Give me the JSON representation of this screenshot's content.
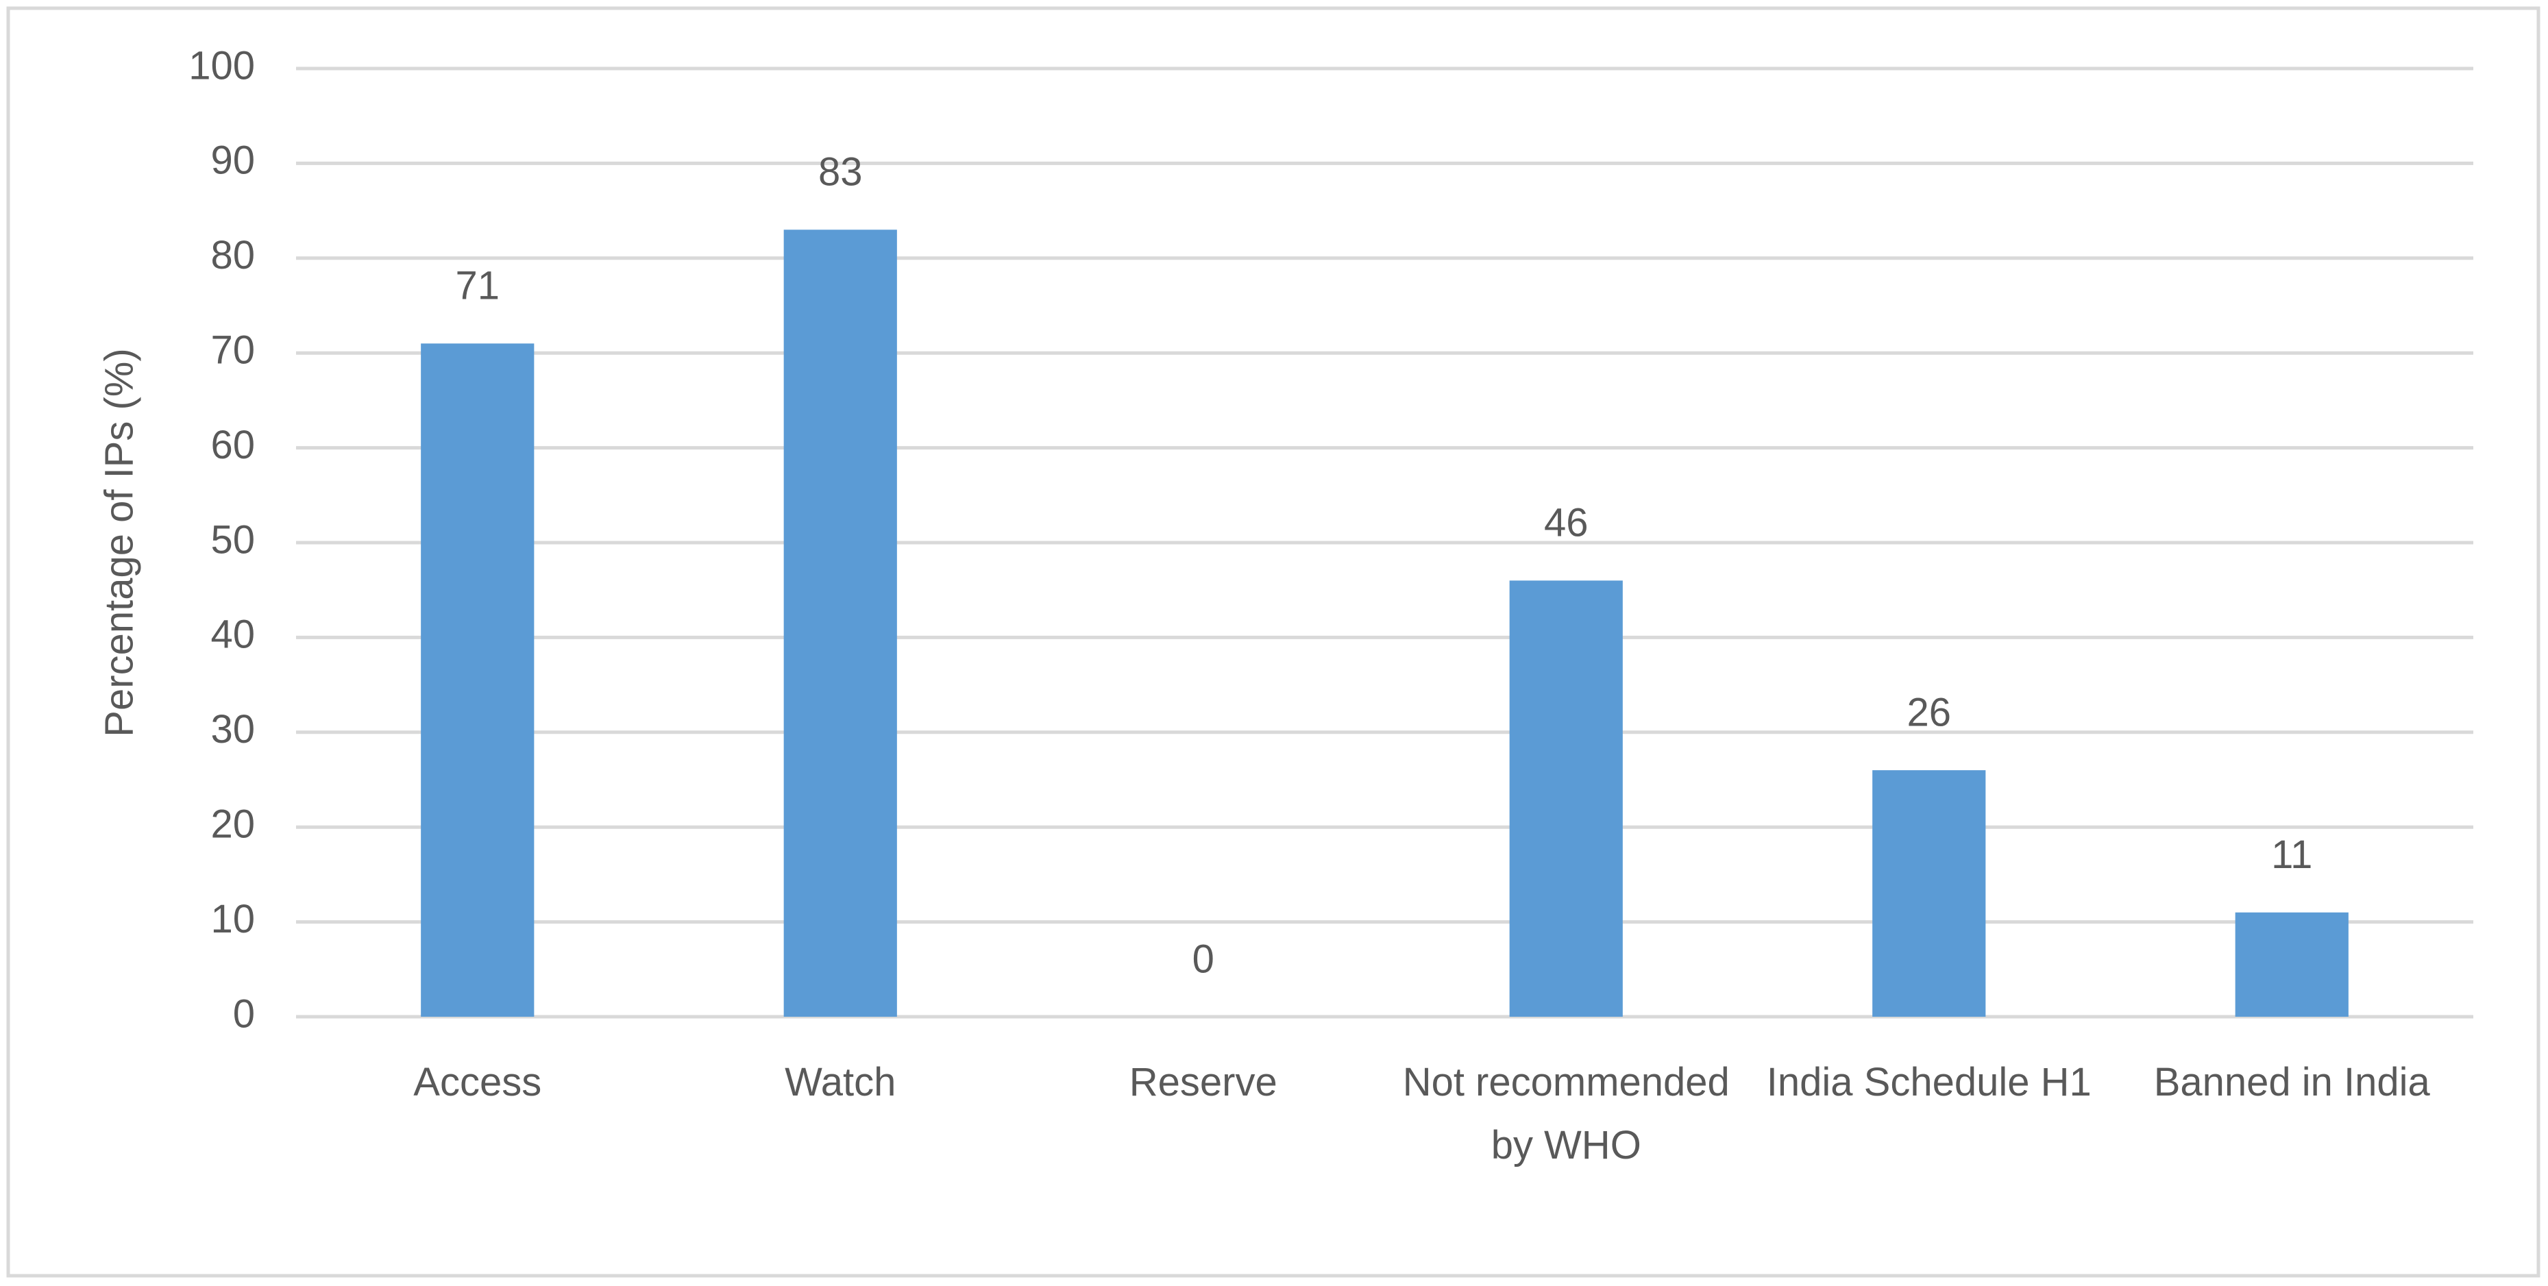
{
  "chart_data": {
    "type": "bar",
    "y_label": "Percentage of IPs (%)",
    "categories": [
      "Access",
      "Watch",
      "Reserve",
      "Not recommended by WHO",
      "India Schedule H1",
      "Banned in India"
    ],
    "values": [
      71,
      83,
      0,
      46,
      26,
      11
    ],
    "color": "#5b9bd5",
    "ylim": [
      0,
      100
    ],
    "yticks": [
      0,
      10,
      20,
      30,
      40,
      50,
      60,
      70,
      80,
      90,
      100
    ],
    "grid": true
  }
}
